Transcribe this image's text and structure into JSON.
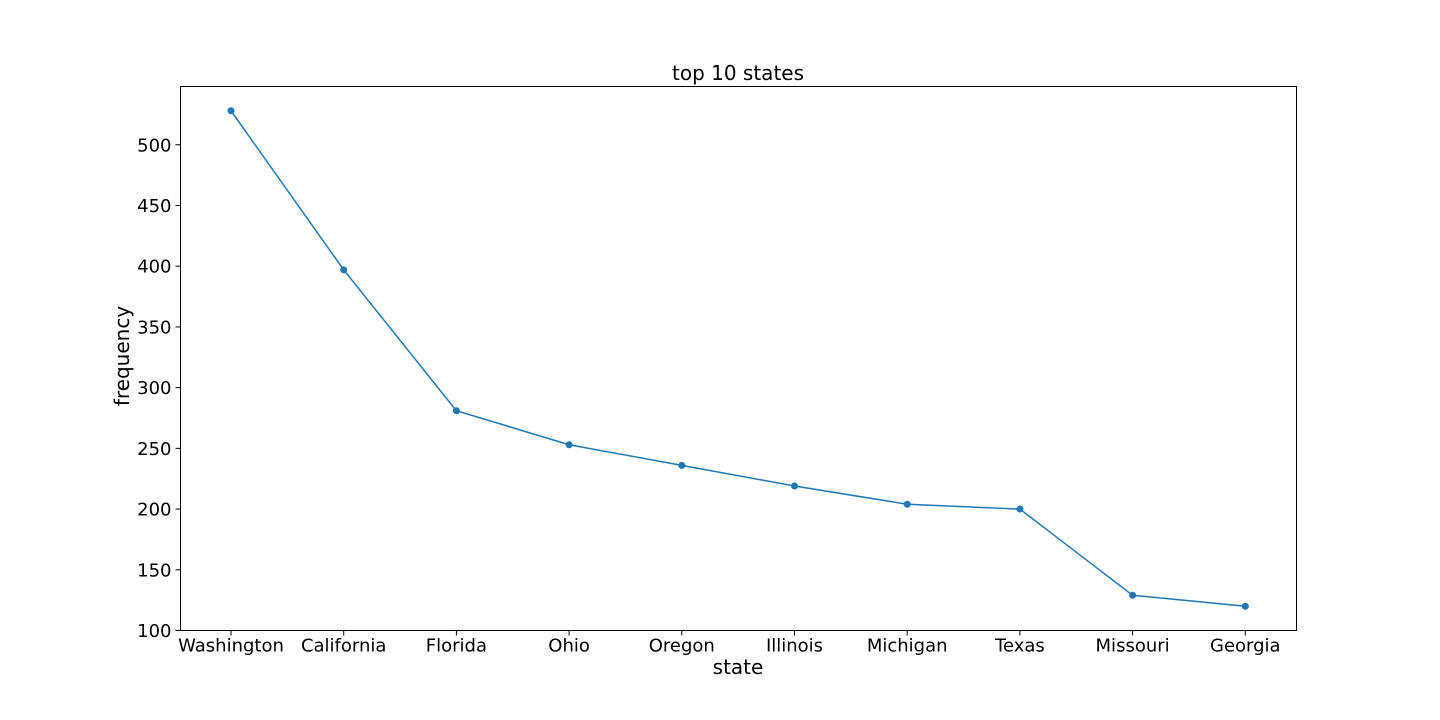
{
  "chart_data": {
    "type": "line",
    "title": "top 10 states",
    "xlabel": "state",
    "ylabel": "frequency",
    "categories": [
      "Washington",
      "California",
      "Florida",
      "Ohio",
      "Oregon",
      "Illinois",
      "Michigan",
      "Texas",
      "Missouri",
      "Georgia"
    ],
    "series": [
      {
        "values": [
          528,
          397,
          281,
          253,
          236,
          219,
          204,
          200,
          129,
          120
        ]
      }
    ],
    "ylim": [
      100,
      548
    ],
    "yticks": [
      100,
      150,
      200,
      250,
      300,
      350,
      400,
      450,
      500
    ],
    "grid": false,
    "legend": "none",
    "line_color": "#1f77b4",
    "marker": "circle"
  }
}
